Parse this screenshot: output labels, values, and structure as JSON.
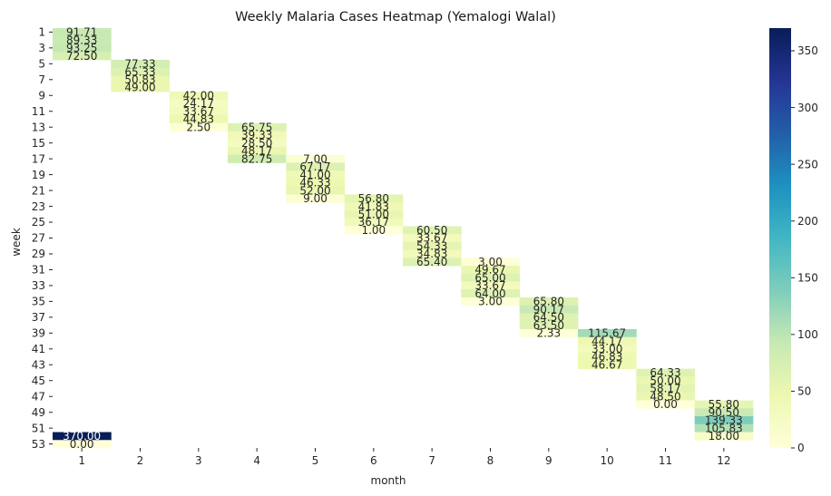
{
  "chart_data": {
    "type": "heatmap",
    "title": "Weekly Malaria Cases Heatmap (Yemalogi Walal)",
    "xlabel": "month",
    "ylabel": "week",
    "x_categories": [
      1,
      2,
      3,
      4,
      5,
      6,
      7,
      8,
      9,
      10,
      11,
      12
    ],
    "y_categories": [
      1,
      2,
      3,
      4,
      5,
      6,
      7,
      8,
      9,
      10,
      11,
      12,
      13,
      14,
      15,
      16,
      17,
      18,
      19,
      20,
      21,
      22,
      23,
      24,
      25,
      26,
      27,
      28,
      29,
      30,
      31,
      32,
      33,
      34,
      35,
      36,
      37,
      38,
      39,
      40,
      41,
      42,
      43,
      44,
      45,
      46,
      47,
      48,
      49,
      50,
      51,
      52,
      53
    ],
    "y_tick_labels_shown": [
      1,
      3,
      5,
      7,
      9,
      11,
      13,
      15,
      17,
      19,
      21,
      23,
      25,
      27,
      29,
      31,
      33,
      35,
      37,
      39,
      41,
      43,
      45,
      47,
      49,
      51,
      53
    ],
    "colorscale": "YlGnBu",
    "colorbar_range": [
      0,
      370
    ],
    "colorbar_ticks": [
      0,
      50,
      100,
      150,
      200,
      250,
      300,
      350
    ],
    "cells": [
      {
        "week": 1,
        "month": 1,
        "value": 91.71,
        "label": "91.71"
      },
      {
        "week": 2,
        "month": 1,
        "value": 89.33,
        "label": "89.33"
      },
      {
        "week": 3,
        "month": 1,
        "value": 93.25,
        "label": "93.25"
      },
      {
        "week": 4,
        "month": 1,
        "value": 72.5,
        "label": "72.50"
      },
      {
        "week": 5,
        "month": 2,
        "value": 77.33,
        "label": "77.33"
      },
      {
        "week": 6,
        "month": 2,
        "value": 65.33,
        "label": "65.33"
      },
      {
        "week": 7,
        "month": 2,
        "value": 50.83,
        "label": "50.83"
      },
      {
        "week": 8,
        "month": 2,
        "value": 49.0,
        "label": "49.00"
      },
      {
        "week": 9,
        "month": 3,
        "value": 42.0,
        "label": "42.00"
      },
      {
        "week": 10,
        "month": 3,
        "value": 24.17,
        "label": "24.17"
      },
      {
        "week": 11,
        "month": 3,
        "value": 33.67,
        "label": "33.67"
      },
      {
        "week": 12,
        "month": 3,
        "value": 44.83,
        "label": "44.83"
      },
      {
        "week": 13,
        "month": 3,
        "value": 2.5,
        "label": "2.50"
      },
      {
        "week": 13,
        "month": 4,
        "value": 65.75,
        "label": "65.75"
      },
      {
        "week": 14,
        "month": 4,
        "value": 39.33,
        "label": "39.33"
      },
      {
        "week": 15,
        "month": 4,
        "value": 28.5,
        "label": "28.50"
      },
      {
        "week": 16,
        "month": 4,
        "value": 48.17,
        "label": "48.17"
      },
      {
        "week": 17,
        "month": 4,
        "value": 82.75,
        "label": "82.75"
      },
      {
        "week": 17,
        "month": 5,
        "value": 7.0,
        "label": "7.00"
      },
      {
        "week": 18,
        "month": 5,
        "value": 67.17,
        "label": "67.17"
      },
      {
        "week": 19,
        "month": 5,
        "value": 41.0,
        "label": "41.00"
      },
      {
        "week": 20,
        "month": 5,
        "value": 46.33,
        "label": "46.33"
      },
      {
        "week": 21,
        "month": 5,
        "value": 52.0,
        "label": "52.00"
      },
      {
        "week": 22,
        "month": 5,
        "value": 9.0,
        "label": "9.00"
      },
      {
        "week": 22,
        "month": 6,
        "value": 56.8,
        "label": "56.80"
      },
      {
        "week": 23,
        "month": 6,
        "value": 41.83,
        "label": "41.83"
      },
      {
        "week": 24,
        "month": 6,
        "value": 51.0,
        "label": "51.00"
      },
      {
        "week": 25,
        "month": 6,
        "value": 36.17,
        "label": "36.17"
      },
      {
        "week": 26,
        "month": 6,
        "value": 1.0,
        "label": "1.00"
      },
      {
        "week": 26,
        "month": 7,
        "value": 60.5,
        "label": "60.50"
      },
      {
        "week": 27,
        "month": 7,
        "value": 33.67,
        "label": "33.67"
      },
      {
        "week": 28,
        "month": 7,
        "value": 54.33,
        "label": "54.33"
      },
      {
        "week": 29,
        "month": 7,
        "value": 34.83,
        "label": "34.83"
      },
      {
        "week": 30,
        "month": 7,
        "value": 65.4,
        "label": "65.40"
      },
      {
        "week": 30,
        "month": 8,
        "value": 3.0,
        "label": "3.00"
      },
      {
        "week": 31,
        "month": 8,
        "value": 49.67,
        "label": "49.67"
      },
      {
        "week": 32,
        "month": 8,
        "value": 65.0,
        "label": "65.00"
      },
      {
        "week": 33,
        "month": 8,
        "value": 33.67,
        "label": "33.67"
      },
      {
        "week": 34,
        "month": 8,
        "value": 64.0,
        "label": "64.00"
      },
      {
        "week": 35,
        "month": 8,
        "value": 3.0,
        "label": "3.00"
      },
      {
        "week": 35,
        "month": 9,
        "value": 65.8,
        "label": "65.80"
      },
      {
        "week": 36,
        "month": 9,
        "value": 90.17,
        "label": "90.17"
      },
      {
        "week": 37,
        "month": 9,
        "value": 64.5,
        "label": "64.50"
      },
      {
        "week": 38,
        "month": 9,
        "value": 63.5,
        "label": "63.50"
      },
      {
        "week": 39,
        "month": 9,
        "value": 2.33,
        "label": "2.33"
      },
      {
        "week": 39,
        "month": 10,
        "value": 115.67,
        "label": "115.67"
      },
      {
        "week": 40,
        "month": 10,
        "value": 44.17,
        "label": "44.17"
      },
      {
        "week": 41,
        "month": 10,
        "value": 33.0,
        "label": "33.00"
      },
      {
        "week": 42,
        "month": 10,
        "value": 46.83,
        "label": "46.83"
      },
      {
        "week": 43,
        "month": 10,
        "value": 46.67,
        "label": "46.67"
      },
      {
        "week": 44,
        "month": 11,
        "value": 64.33,
        "label": "64.33"
      },
      {
        "week": 45,
        "month": 11,
        "value": 50.0,
        "label": "50.00"
      },
      {
        "week": 46,
        "month": 11,
        "value": 58.17,
        "label": "58.17"
      },
      {
        "week": 47,
        "month": 11,
        "value": 48.5,
        "label": "48.50"
      },
      {
        "week": 48,
        "month": 11,
        "value": 0.0,
        "label": "0.00"
      },
      {
        "week": 48,
        "month": 12,
        "value": 55.8,
        "label": "55.80"
      },
      {
        "week": 49,
        "month": 12,
        "value": 90.5,
        "label": "90.50"
      },
      {
        "week": 50,
        "month": 12,
        "value": 139.33,
        "label": "139.33"
      },
      {
        "week": 51,
        "month": 12,
        "value": 105.83,
        "label": "105.83"
      },
      {
        "week": 52,
        "month": 12,
        "value": 18.0,
        "label": "18.00"
      },
      {
        "week": 52,
        "month": 1,
        "value": 370.0,
        "label": "370.00"
      },
      {
        "week": 53,
        "month": 1,
        "value": 0.0,
        "label": "0.00"
      }
    ]
  }
}
